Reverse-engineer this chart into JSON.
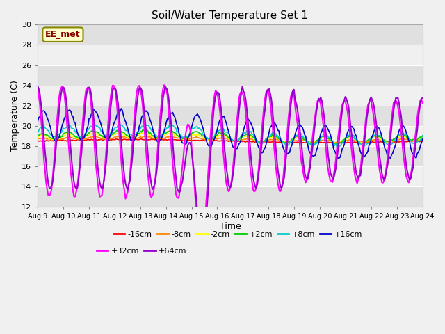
{
  "title": "Soil/Water Temperature Set 1",
  "xlabel": "Time",
  "ylabel": "Temperature (C)",
  "xlim": [
    0,
    15
  ],
  "ylim": [
    12,
    30
  ],
  "yticks": [
    12,
    14,
    16,
    18,
    20,
    22,
    24,
    26,
    28,
    30
  ],
  "xtick_labels": [
    "Aug 9",
    "Aug 10",
    "Aug 11",
    "Aug 12",
    "Aug 13",
    "Aug 14",
    "Aug 15",
    "Aug 16",
    "Aug 17",
    "Aug 18",
    "Aug 19",
    "Aug 20",
    "Aug 21",
    "Aug 22",
    "Aug 23",
    "Aug 24"
  ],
  "annotation": "EE_met",
  "bg_light": "#f0f0f0",
  "bg_dark": "#e0e0e0",
  "series": [
    {
      "label": "-16cm",
      "color": "#ff0000"
    },
    {
      "label": "-8cm",
      "color": "#ff8800"
    },
    {
      "label": "-2cm",
      "color": "#ffff00"
    },
    {
      "label": "+2cm",
      "color": "#00cc00"
    },
    {
      "label": "+8cm",
      "color": "#00cccc"
    },
    {
      "label": "+16cm",
      "color": "#0000cc"
    },
    {
      "label": "+32cm",
      "color": "#ff00ff"
    },
    {
      "label": "+64cm",
      "color": "#9900cc"
    }
  ],
  "base_temp": 18.5,
  "n_days": 15,
  "pts_per_day": 24
}
